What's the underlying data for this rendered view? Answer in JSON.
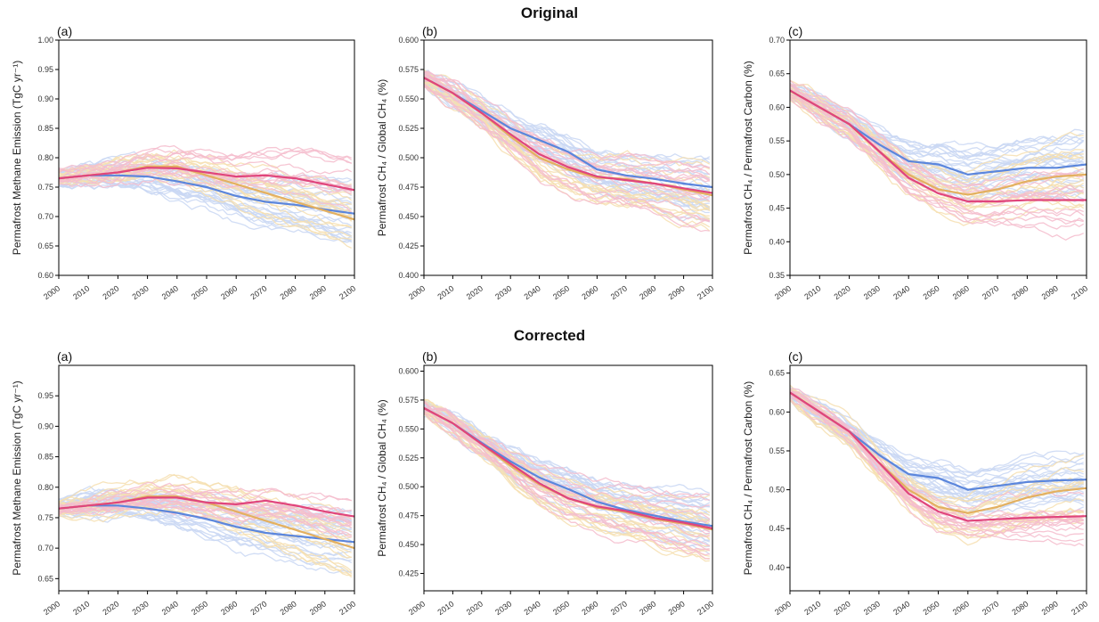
{
  "rows": [
    {
      "title": "Original"
    },
    {
      "title": "Corrected"
    }
  ],
  "colors": {
    "ensemble_blue": "#c9d7f3",
    "ensemble_orange": "#f6dfb0",
    "ensemble_pink": "#f5bccd",
    "mean_blue": "#5b86dc",
    "mean_orange": "#e3b060",
    "mean_pink": "#e0457c"
  },
  "chart_data": [
    {
      "type": "line",
      "panel": "(a)",
      "row": "Original",
      "ylabel": "Permafrost Methane Emission (TgC yr⁻¹)",
      "xlim": [
        2000,
        2100
      ],
      "ylim": [
        0.6,
        1.0
      ],
      "xticks": [
        "2000",
        "2010",
        "2020",
        "2030",
        "2040",
        "2050",
        "2060",
        "2070",
        "2080",
        "2090",
        "2100"
      ],
      "yticks": [
        "0.60",
        "0.65",
        "0.70",
        "0.75",
        "0.80",
        "0.85",
        "0.90",
        "0.95",
        "1.00"
      ],
      "x": [
        2000,
        2010,
        2020,
        2030,
        2040,
        2050,
        2060,
        2070,
        2080,
        2090,
        2100
      ],
      "series": [
        {
          "color": "#5b86dc",
          "values": [
            0.765,
            0.77,
            0.77,
            0.768,
            0.76,
            0.75,
            0.735,
            0.725,
            0.72,
            0.712,
            0.705
          ]
        },
        {
          "color": "#e3b060",
          "values": [
            0.765,
            0.77,
            0.775,
            0.785,
            0.785,
            0.77,
            0.755,
            0.74,
            0.725,
            0.71,
            0.695
          ]
        },
        {
          "color": "#e0457c",
          "values": [
            0.765,
            0.77,
            0.775,
            0.783,
            0.782,
            0.775,
            0.768,
            0.77,
            0.765,
            0.755,
            0.745
          ]
        }
      ]
    },
    {
      "type": "line",
      "panel": "(b)",
      "row": "Original",
      "ylabel": "Permafrost CH₄ / Global CH₄ (%)",
      "xlim": [
        2000,
        2100
      ],
      "ylim": [
        0.4,
        0.6
      ],
      "xticks": [
        "2000",
        "2010",
        "2020",
        "2030",
        "2040",
        "2050",
        "2060",
        "2070",
        "2080",
        "2090",
        "2100"
      ],
      "yticks": [
        "0.400",
        "0.425",
        "0.450",
        "0.475",
        "0.500",
        "0.525",
        "0.550",
        "0.575",
        "0.600"
      ],
      "x": [
        2000,
        2010,
        2020,
        2030,
        2040,
        2050,
        2060,
        2070,
        2080,
        2090,
        2100
      ],
      "series": [
        {
          "color": "#5b86dc",
          "values": [
            0.568,
            0.555,
            0.54,
            0.525,
            0.515,
            0.505,
            0.49,
            0.485,
            0.482,
            0.478,
            0.475
          ]
        },
        {
          "color": "#e3b060",
          "values": [
            0.568,
            0.555,
            0.538,
            0.518,
            0.5,
            0.49,
            0.483,
            0.482,
            0.478,
            0.473,
            0.468
          ]
        },
        {
          "color": "#e0457c",
          "values": [
            0.568,
            0.555,
            0.538,
            0.52,
            0.503,
            0.492,
            0.484,
            0.481,
            0.478,
            0.474,
            0.47
          ]
        }
      ]
    },
    {
      "type": "line",
      "panel": "(c)",
      "row": "Original",
      "ylabel": "Permafrost CH₄ / Permafrost Carbon (%)",
      "xlim": [
        2000,
        2100
      ],
      "ylim": [
        0.35,
        0.7
      ],
      "xticks": [
        "2000",
        "2010",
        "2020",
        "2030",
        "2040",
        "2050",
        "2060",
        "2070",
        "2080",
        "2090",
        "2100"
      ],
      "yticks": [
        "0.35",
        "0.40",
        "0.45",
        "0.50",
        "0.55",
        "0.60",
        "0.65",
        "0.70"
      ],
      "x": [
        2000,
        2010,
        2020,
        2030,
        2040,
        2050,
        2060,
        2070,
        2080,
        2090,
        2100
      ],
      "series": [
        {
          "color": "#5b86dc",
          "values": [
            0.625,
            0.6,
            0.575,
            0.545,
            0.52,
            0.515,
            0.5,
            0.505,
            0.51,
            0.51,
            0.515
          ]
        },
        {
          "color": "#e3b060",
          "values": [
            0.625,
            0.6,
            0.575,
            0.535,
            0.5,
            0.478,
            0.47,
            0.478,
            0.49,
            0.497,
            0.5
          ]
        },
        {
          "color": "#e0457c",
          "values": [
            0.625,
            0.6,
            0.575,
            0.535,
            0.495,
            0.472,
            0.46,
            0.46,
            0.462,
            0.462,
            0.462
          ]
        }
      ]
    },
    {
      "type": "line",
      "panel": "(a)",
      "row": "Corrected",
      "ylabel": "Permafrost Methane Emission (TgC yr⁻¹)",
      "xlim": [
        2000,
        2100
      ],
      "ylim": [
        0.63,
        1.0
      ],
      "xticks": [
        "2000",
        "2010",
        "2020",
        "2030",
        "2040",
        "2050",
        "2060",
        "2070",
        "2080",
        "2090",
        "2100"
      ],
      "yticks": [
        "0.65",
        "0.70",
        "0.75",
        "0.80",
        "0.85",
        "0.90",
        "0.95"
      ],
      "x": [
        2000,
        2010,
        2020,
        2030,
        2040,
        2050,
        2060,
        2070,
        2080,
        2090,
        2100
      ],
      "series": [
        {
          "color": "#5b86dc",
          "values": [
            0.765,
            0.77,
            0.77,
            0.765,
            0.758,
            0.748,
            0.735,
            0.725,
            0.72,
            0.715,
            0.71
          ]
        },
        {
          "color": "#e3b060",
          "values": [
            0.765,
            0.77,
            0.775,
            0.785,
            0.785,
            0.775,
            0.76,
            0.745,
            0.73,
            0.715,
            0.7
          ]
        },
        {
          "color": "#e0457c",
          "values": [
            0.765,
            0.77,
            0.775,
            0.783,
            0.783,
            0.775,
            0.772,
            0.778,
            0.77,
            0.76,
            0.752
          ]
        }
      ]
    },
    {
      "type": "line",
      "panel": "(b)",
      "row": "Corrected",
      "ylabel": "Permafrost CH₄ / Global CH₄ (%)",
      "xlim": [
        2000,
        2100
      ],
      "ylim": [
        0.41,
        0.605
      ],
      "xticks": [
        "2000",
        "2010",
        "2020",
        "2030",
        "2040",
        "2050",
        "2060",
        "2070",
        "2080",
        "2090",
        "2100"
      ],
      "yticks": [
        "0.425",
        "0.450",
        "0.475",
        "0.500",
        "0.525",
        "0.550",
        "0.575",
        "0.600"
      ],
      "x": [
        2000,
        2010,
        2020,
        2030,
        2040,
        2050,
        2060,
        2070,
        2080,
        2090,
        2100
      ],
      "series": [
        {
          "color": "#5b86dc",
          "values": [
            0.568,
            0.555,
            0.538,
            0.522,
            0.508,
            0.498,
            0.487,
            0.48,
            0.475,
            0.47,
            0.466
          ]
        },
        {
          "color": "#e3b060",
          "values": [
            0.568,
            0.555,
            0.537,
            0.518,
            0.502,
            0.49,
            0.482,
            0.478,
            0.472,
            0.468,
            0.463
          ]
        },
        {
          "color": "#e0457c",
          "values": [
            0.568,
            0.555,
            0.537,
            0.52,
            0.503,
            0.49,
            0.483,
            0.479,
            0.473,
            0.469,
            0.464
          ]
        }
      ]
    },
    {
      "type": "line",
      "panel": "(c)",
      "row": "Corrected",
      "ylabel": "Permafrost CH₄ / Permafrost Carbon (%)",
      "xlim": [
        2000,
        2100
      ],
      "ylim": [
        0.37,
        0.66
      ],
      "xticks": [
        "2000",
        "2010",
        "2020",
        "2030",
        "2040",
        "2050",
        "2060",
        "2070",
        "2080",
        "2090",
        "2100"
      ],
      "yticks": [
        "0.40",
        "0.45",
        "0.50",
        "0.55",
        "0.60",
        "0.65"
      ],
      "x": [
        2000,
        2010,
        2020,
        2030,
        2040,
        2050,
        2060,
        2070,
        2080,
        2090,
        2100
      ],
      "series": [
        {
          "color": "#5b86dc",
          "values": [
            0.625,
            0.6,
            0.575,
            0.545,
            0.52,
            0.515,
            0.5,
            0.505,
            0.51,
            0.512,
            0.513
          ]
        },
        {
          "color": "#e3b060",
          "values": [
            0.625,
            0.6,
            0.575,
            0.535,
            0.5,
            0.478,
            0.47,
            0.478,
            0.49,
            0.498,
            0.502
          ]
        },
        {
          "color": "#e0457c",
          "values": [
            0.625,
            0.6,
            0.575,
            0.535,
            0.495,
            0.472,
            0.46,
            0.462,
            0.464,
            0.465,
            0.466
          ]
        }
      ]
    }
  ]
}
